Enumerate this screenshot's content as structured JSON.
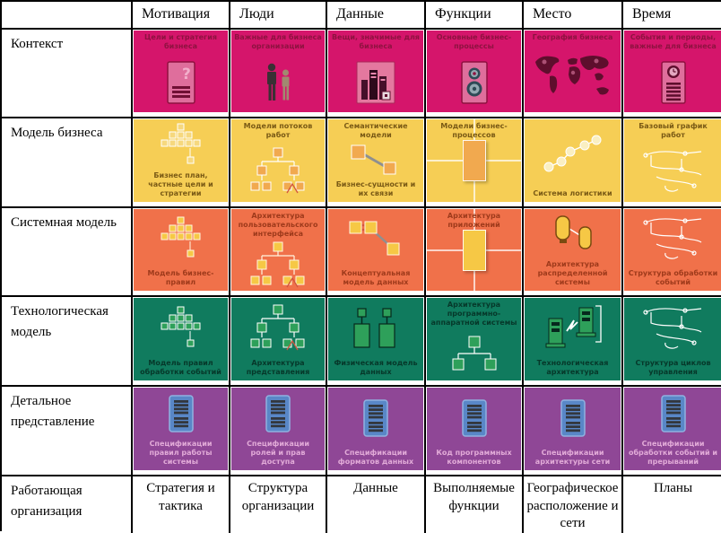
{
  "columns": [
    {
      "key": "motivation",
      "label": "Мотивация"
    },
    {
      "key": "people",
      "label": "Люди"
    },
    {
      "key": "data",
      "label": "Данные"
    },
    {
      "key": "functions",
      "label": "Функции"
    },
    {
      "key": "place",
      "label": "Место"
    },
    {
      "key": "time",
      "label": "Время"
    }
  ],
  "rows": [
    {
      "key": "context",
      "header": "Контекст",
      "bg": "#D5156B",
      "label_color": "#8E1240",
      "icon_colors": {
        "fill": "#DF6E9C",
        "dark": "#8E1240",
        "light": "#F2AFCB",
        "line": "#FFFFFF"
      },
      "cells": [
        {
          "top": "Цели и стратегия бизнеса",
          "icon": "doc-question"
        },
        {
          "top": "Важные для бизнеса организации",
          "icon": "people"
        },
        {
          "top": "Вещи, значимые для бизнеса",
          "icon": "buildings"
        },
        {
          "top": "Основные бизнес-процессы",
          "icon": "doc-gears"
        },
        {
          "top": "География бизнеса",
          "icon": "world-map"
        },
        {
          "top": "События и периоды, важные для бизнеса",
          "icon": "doc-clock"
        }
      ]
    },
    {
      "key": "business-model",
      "header": "Модель бизнеса",
      "bg": "#F6CE55",
      "label_color": "#7A5A15",
      "icon_colors": {
        "fill": "#F1A94F",
        "dark": "#B5791F",
        "light": "#F8E29B",
        "line": "#FFFFFF"
      },
      "cells": [
        {
          "bottom": "Бизнес план, частные цели и стратегии",
          "icon": "pyramid",
          "icon_fill": "#F6D87E"
        },
        {
          "top": "Модели потоков работ",
          "icon": "org-tree"
        },
        {
          "top": "Семантические модели",
          "bottom": "Бизнес-сущности и их связи",
          "icon": "entities"
        },
        {
          "top": "Модели бизнес-процессов",
          "icon": "process-cross"
        },
        {
          "bottom": "Система логистики",
          "icon": "network",
          "icon_fill": "#FAEFC2"
        },
        {
          "top": "Базовый график работ",
          "icon": "sketch"
        }
      ]
    },
    {
      "key": "system-model",
      "header": "Системная модель",
      "bg": "#F0714A",
      "label_color": "#9E3A1B",
      "icon_colors": {
        "fill": "#F6C845",
        "dark": "#9E4A14",
        "light": "#FBE49B",
        "line": "#FFF6E0"
      },
      "cells": [
        {
          "bottom": "Модель бизнес-правил",
          "icon": "pyramid"
        },
        {
          "top": "Архитектура пользовательского интерфейса",
          "icon": "org-tree"
        },
        {
          "bottom": "Концептуальная модель данных",
          "icon": "entities3"
        },
        {
          "top": "Архитектура приложений",
          "icon": "process-cross"
        },
        {
          "bottom": "Архитектура распределенной системы",
          "icon": "distributed"
        },
        {
          "bottom": "Структура обработки событий",
          "icon": "sketch"
        }
      ]
    },
    {
      "key": "technology-model",
      "header": "Технологическая модель",
      "bg": "#107B5E",
      "label_color": "#06382A",
      "icon_colors": {
        "fill": "#2EA05A",
        "dark": "#06281D",
        "light": "#90D8A9",
        "line": "#FFFFFF"
      },
      "cells": [
        {
          "bottom": "Модель правил обработки событий",
          "icon": "pyramid"
        },
        {
          "bottom": "Архитектура представления",
          "icon": "org-tree"
        },
        {
          "bottom": "Физическая модель данных",
          "icon": "data-physical"
        },
        {
          "top": "Архитектура программно-аппаратной системы",
          "icon": "tree-small"
        },
        {
          "bottom": "Технологическая архитектура",
          "icon": "computers"
        },
        {
          "bottom": "Структура циклов управления",
          "icon": "sketch"
        }
      ]
    },
    {
      "key": "detailed-representation",
      "header": "Детальное представление",
      "bg": "#8F4796",
      "label_color": "#E2ABD8",
      "icon_colors": {
        "fill": "#5987C7",
        "dark": "#33373D",
        "light": "#8FB2E0",
        "line": "#FFFFFF"
      },
      "cells": [
        {
          "bottom": "Спецификации правил работы системы",
          "icon": "spec-doc"
        },
        {
          "bottom": "Спецификации ролей и прав доступа",
          "icon": "spec-doc"
        },
        {
          "bottom": "Спецификации форматов данных",
          "icon": "spec-doc"
        },
        {
          "bottom": "Код программных компонентов",
          "icon": "spec-doc"
        },
        {
          "bottom": "Спецификации архитектуры сети",
          "icon": "spec-doc"
        },
        {
          "bottom": "Спецификации обработки событий и прерываний",
          "icon": "spec-doc"
        }
      ]
    }
  ],
  "footer": {
    "key": "working-organization",
    "header": "Работающая организация",
    "cells": [
      "Стратегия и тактика",
      "Структура организации",
      "Данные",
      "Выполняемые функции",
      "Географическое расположение и сети",
      "Планы"
    ]
  },
  "colors": {
    "border": "#000000",
    "background": "#FFFFFF"
  }
}
